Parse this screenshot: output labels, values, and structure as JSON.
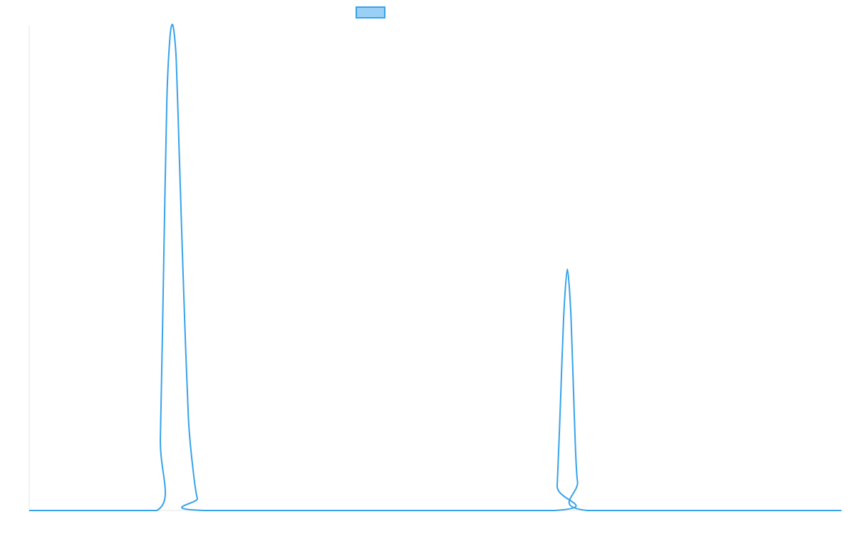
{
  "chart_data": {
    "type": "line",
    "title": "",
    "xlabel": "",
    "ylabel": "",
    "grid": false,
    "legend": {
      "position": "top-center",
      "entries": [
        {
          "label": "",
          "color": "#36a2eb",
          "fill": "#9ad0f5"
        }
      ]
    },
    "xlim": [
      0,
      100
    ],
    "ylim": [
      0,
      1
    ],
    "series": [
      {
        "color": "#36a2eb",
        "x": [
          0,
          10,
          15.7,
          16.2,
          16.7,
          17.1,
          17.5,
          17.7,
          18.1,
          18.5,
          19.0,
          19.6,
          20.3,
          20.9,
          21.3,
          21.7,
          100
        ],
        "y": [
          0,
          0,
          0,
          0.14,
          0.52,
          0.84,
          0.985,
          1.0,
          0.92,
          0.7,
          0.46,
          0.18,
          0.08,
          0.025,
          0,
          0,
          0
        ],
        "points": [
          [
            0,
            0
          ],
          [
            15.7,
            0
          ],
          [
            16.15,
            0.15
          ],
          [
            16.6,
            0.55
          ],
          [
            16.95,
            0.85
          ],
          [
            17.35,
            0.98
          ],
          [
            17.7,
            1.0
          ],
          [
            18.1,
            0.93
          ],
          [
            18.5,
            0.72
          ],
          [
            19.0,
            0.46
          ],
          [
            19.6,
            0.19
          ],
          [
            20.2,
            0.08
          ],
          [
            20.7,
            0.025
          ],
          [
            21.6,
            0
          ],
          [
            64.7,
            0
          ],
          [
            65.0,
            0.05
          ],
          [
            65.4,
            0.22
          ],
          [
            65.8,
            0.4
          ],
          [
            66.25,
            0.498
          ],
          [
            66.7,
            0.4
          ],
          [
            67.1,
            0.2
          ],
          [
            67.5,
            0.06
          ],
          [
            68.7,
            0
          ],
          [
            100,
            0
          ]
        ]
      }
    ]
  }
}
